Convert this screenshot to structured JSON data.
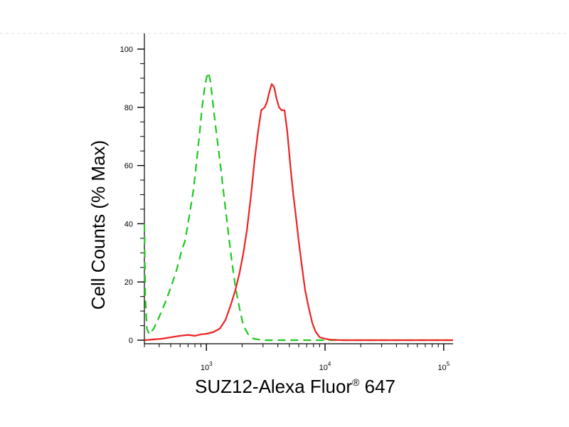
{
  "chart_data": {
    "type": "line",
    "xlabel": "SUZ12-Alexa Fluor",
    "xlabel_sup": "®",
    "xlabel_suffix": " 647",
    "ylabel": "Cell Counts (% Max)",
    "x_scale": "log",
    "xlim": [
      300,
      120000
    ],
    "ylim": [
      0,
      103
    ],
    "y_ticks": [
      0,
      20,
      40,
      60,
      80,
      100
    ],
    "x_ticks": [
      {
        "value": 1000,
        "base": "10",
        "exp": "3"
      },
      {
        "value": 10000,
        "base": "10",
        "exp": "4"
      },
      {
        "value": 100000,
        "base": "10",
        "exp": "5"
      }
    ],
    "grid": false,
    "legend": "none",
    "series": [
      {
        "color": "#1ec81e",
        "style": "dashed",
        "points": [
          [
            300,
            40
          ],
          [
            305,
            15
          ],
          [
            315,
            4
          ],
          [
            330,
            2
          ],
          [
            360,
            4
          ],
          [
            400,
            8
          ],
          [
            450,
            13
          ],
          [
            500,
            18
          ],
          [
            560,
            24
          ],
          [
            620,
            31
          ],
          [
            660,
            34
          ],
          [
            720,
            43
          ],
          [
            780,
            52
          ],
          [
            830,
            62
          ],
          [
            880,
            72
          ],
          [
            920,
            80
          ],
          [
            960,
            86
          ],
          [
            1000,
            90
          ],
          [
            1040,
            92
          ],
          [
            1080,
            89
          ],
          [
            1130,
            82
          ],
          [
            1190,
            74
          ],
          [
            1260,
            66
          ],
          [
            1340,
            57
          ],
          [
            1430,
            47
          ],
          [
            1530,
            37
          ],
          [
            1640,
            27
          ],
          [
            1760,
            18
          ],
          [
            1900,
            11
          ],
          [
            2050,
            5
          ],
          [
            2250,
            2
          ],
          [
            2500,
            0.5
          ],
          [
            3000,
            0
          ],
          [
            120000,
            0
          ]
        ]
      },
      {
        "color": "#ee2222",
        "style": "solid",
        "points": [
          [
            300,
            0
          ],
          [
            420,
            0.5
          ],
          [
            500,
            1
          ],
          [
            600,
            1.5
          ],
          [
            700,
            1.8
          ],
          [
            800,
            1.5
          ],
          [
            900,
            2
          ],
          [
            1000,
            2.2
          ],
          [
            1150,
            2.8
          ],
          [
            1300,
            4
          ],
          [
            1450,
            7
          ],
          [
            1600,
            12
          ],
          [
            1750,
            17
          ],
          [
            1900,
            23
          ],
          [
            2050,
            30
          ],
          [
            2200,
            38
          ],
          [
            2380,
            50
          ],
          [
            2550,
            62
          ],
          [
            2730,
            72
          ],
          [
            2900,
            79
          ],
          [
            3100,
            80
          ],
          [
            3250,
            82
          ],
          [
            3380,
            85
          ],
          [
            3550,
            88
          ],
          [
            3720,
            87
          ],
          [
            3900,
            83
          ],
          [
            4100,
            80
          ],
          [
            4300,
            79
          ],
          [
            4550,
            79
          ],
          [
            4800,
            72
          ],
          [
            5100,
            60
          ],
          [
            5400,
            50
          ],
          [
            5700,
            42
          ],
          [
            6000,
            34
          ],
          [
            6400,
            25
          ],
          [
            6800,
            17
          ],
          [
            7300,
            11
          ],
          [
            7800,
            6
          ],
          [
            8300,
            3
          ],
          [
            9000,
            1
          ],
          [
            10000,
            0.5
          ],
          [
            11000,
            0.2
          ],
          [
            14000,
            0
          ],
          [
            120000,
            0
          ]
        ]
      }
    ]
  }
}
